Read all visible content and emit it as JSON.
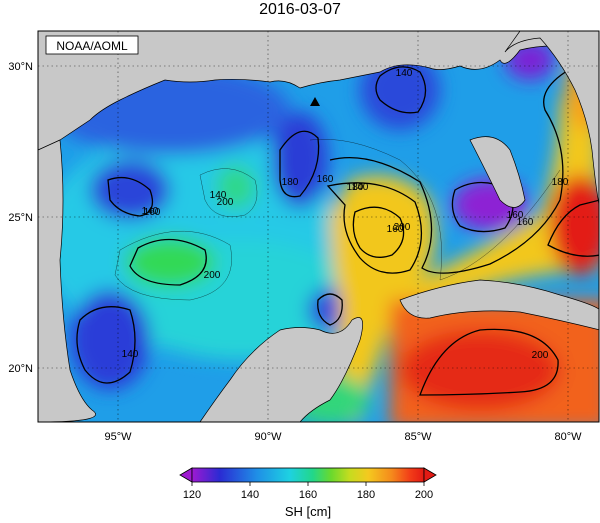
{
  "title": "2016-03-07",
  "credit": "NOAA/AOML",
  "map": {
    "lat_ticks": [
      "20°N",
      "25°N",
      "30°N"
    ],
    "lon_ticks": [
      "95°W",
      "90°W",
      "85°W",
      "80°W"
    ],
    "lat_range": [
      18,
      31
    ],
    "lon_range": [
      -98,
      -79
    ],
    "grid": "dotted",
    "marker": {
      "symbol": "triangle",
      "lat": 28.8,
      "lon": -88.3
    }
  },
  "contours": {
    "interval_cm": 10,
    "labels": [
      "140",
      "160",
      "180",
      "200",
      "140",
      "160",
      "140",
      "160",
      "180",
      "200",
      "160",
      "180",
      "200",
      "140",
      "160",
      "200",
      "140"
    ]
  },
  "colorbar": {
    "label": "SH [cm]",
    "ticks": [
      "120",
      "140",
      "160",
      "180",
      "200"
    ],
    "min": 120,
    "max": 200,
    "colors": [
      "#9e19d1",
      "#2a2bd3",
      "#1f8fe6",
      "#1ed1e2",
      "#22d78a",
      "#6ad92d",
      "#c6dc1f",
      "#f4c91f",
      "#f58a1c",
      "#f23d18",
      "#e31a14"
    ]
  },
  "colors": {
    "land": "#c8c8c8",
    "coast": "#000000",
    "water_low": "#2a2bd3",
    "water_high": "#e31a14"
  }
}
